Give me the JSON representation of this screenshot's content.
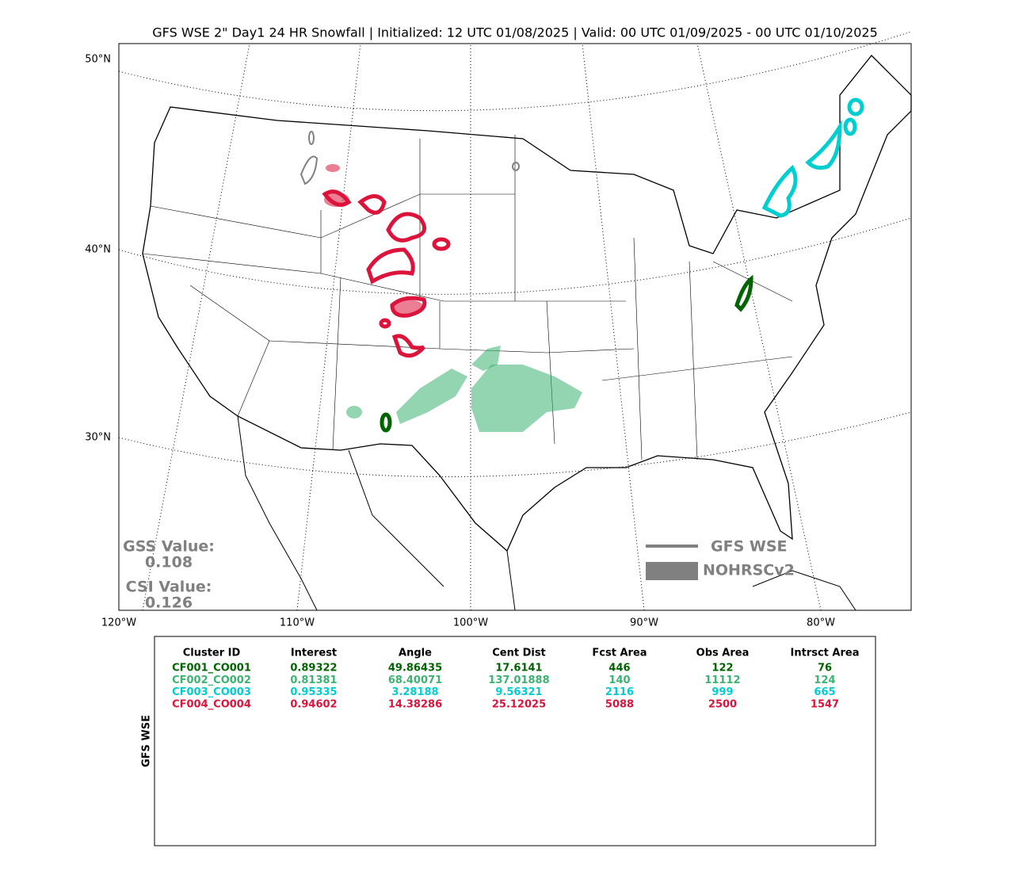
{
  "title": "GFS WSE 2\" Day1 24 HR Snowfall | Initialized: 12 UTC 01/08/2025 | Valid: 00 UTC 01/09/2025 - 00 UTC 01/10/2025",
  "map": {
    "lat_labels": [
      "50°N",
      "40°N",
      "30°N"
    ],
    "lon_labels": [
      "120°W",
      "110°W",
      "100°W",
      "90°W",
      "80°W"
    ],
    "scores": {
      "gss_label": "GSS Value:",
      "gss": 0.108,
      "csi_label": "CSI Value:",
      "csi": 0.126
    },
    "legend": {
      "forecast": "GFS WSE",
      "observed": "NOHRSCv2"
    }
  },
  "table": {
    "side_label": "GFS WSE",
    "columns": [
      "Cluster ID",
      "Interest",
      "Angle",
      "Cent Dist",
      "Fcst Area",
      "Obs Area",
      "Intrsct Area"
    ],
    "rows": [
      {
        "color": "#006400",
        "cells": [
          "CF001_CO001",
          0.89322,
          49.86435,
          17.6141,
          446,
          122,
          76
        ]
      },
      {
        "color": "#3cb371",
        "cells": [
          "CF002_CO002",
          0.81381,
          68.40071,
          137.01888,
          140,
          11112,
          124
        ]
      },
      {
        "color": "#00ced1",
        "cells": [
          "CF003_CO003",
          0.95335,
          3.28188,
          9.56321,
          2116,
          999,
          665
        ]
      },
      {
        "color": "#dc143c",
        "cells": [
          "CF004_CO004",
          0.94602,
          14.38286,
          25.12025,
          5088,
          2500,
          1547
        ]
      }
    ]
  }
}
